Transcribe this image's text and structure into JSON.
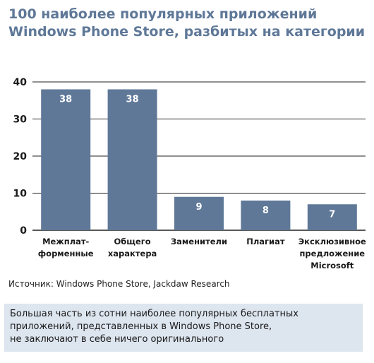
{
  "title_lines": [
    "100 наиболее популярных приложений",
    "Windows Phone Store, разбитых на категории"
  ],
  "source": "Источник: Windows Phone Store, Jackdaw Research",
  "note_lines": [
    "Большая часть из сотни наиболее популярных бесплатных",
    "приложений, представленных в Windows Phone Store,",
    "не заключают в себе ничего оригинального"
  ],
  "colors": {
    "bar": "#5f7898",
    "title": "#5f7898",
    "note_bg": "#dde5ef"
  },
  "chart_data": {
    "type": "bar",
    "categories": [
      [
        "Межплат-",
        "форменные"
      ],
      [
        "Общего",
        "характера"
      ],
      [
        "Заменители"
      ],
      [
        "Плагиат"
      ],
      [
        "Эксклюзивное",
        "предложение",
        "Microsoft"
      ]
    ],
    "values": [
      38,
      38,
      9,
      8,
      7
    ],
    "data_labels": [
      "38",
      "38",
      "9",
      "8",
      "7"
    ],
    "ylim": [
      0,
      40
    ],
    "yticks": [
      "0",
      "10",
      "20",
      "30",
      "40"
    ],
    "grid": "horizontal"
  }
}
